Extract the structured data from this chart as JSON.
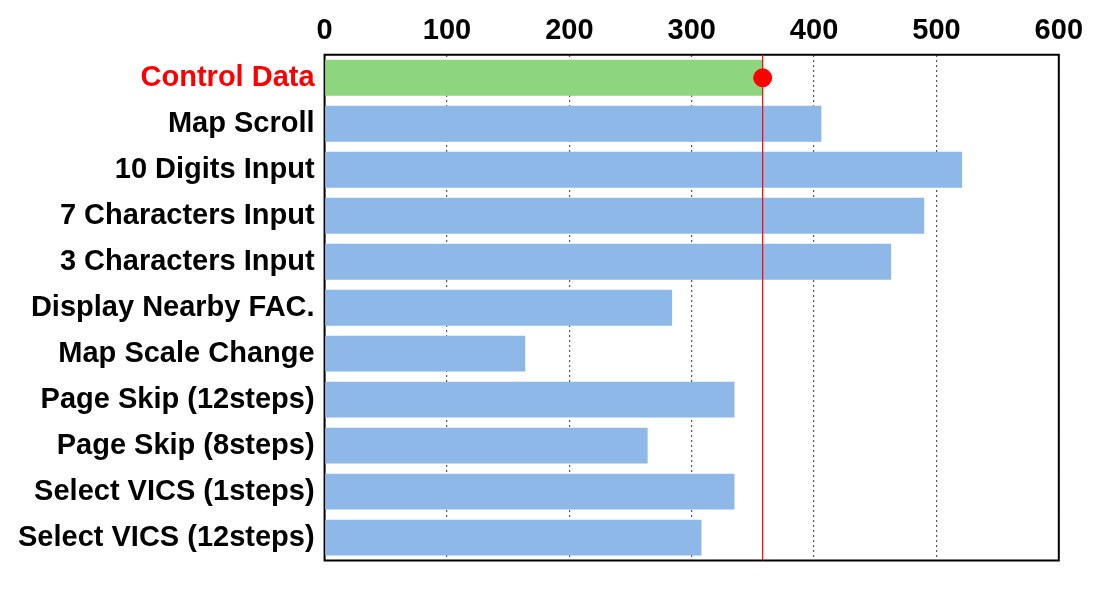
{
  "chart_data": {
    "type": "bar",
    "orientation": "horizontal",
    "categories": [
      "Control Data",
      "Map Scroll",
      "10 Digits Input",
      "7 Characters Input",
      "3 Characters Input",
      "Display Nearby FAC.",
      "Map Scale Change",
      "Page Skip (12steps)",
      "Page Skip (8steps)",
      "Select VICS (1steps)",
      "Select VICS (12steps)"
    ],
    "series": [
      {
        "values": [
          358,
          406,
          521,
          490,
          463,
          284,
          164,
          335,
          264,
          335,
          308
        ],
        "colors": [
          "#8ed67e",
          "#8db8e8",
          "#8db8e8",
          "#8db8e8",
          "#8db8e8",
          "#8db8e8",
          "#8db8e8",
          "#8db8e8",
          "#8db8e8",
          "#8db8e8",
          "#8db8e8"
        ]
      },
      {
        "type": "scatter",
        "x": [
          "Control Data"
        ],
        "values": [
          358
        ],
        "color": "#ff0000"
      }
    ],
    "xlim": [
      0,
      600
    ],
    "xticks": [
      0,
      100,
      200,
      300,
      400,
      500,
      600
    ],
    "grid": "x",
    "marker": "circle",
    "ref_lines": [
      {
        "axis": "x",
        "value": 358,
        "color": "#ff0000"
      }
    ]
  }
}
